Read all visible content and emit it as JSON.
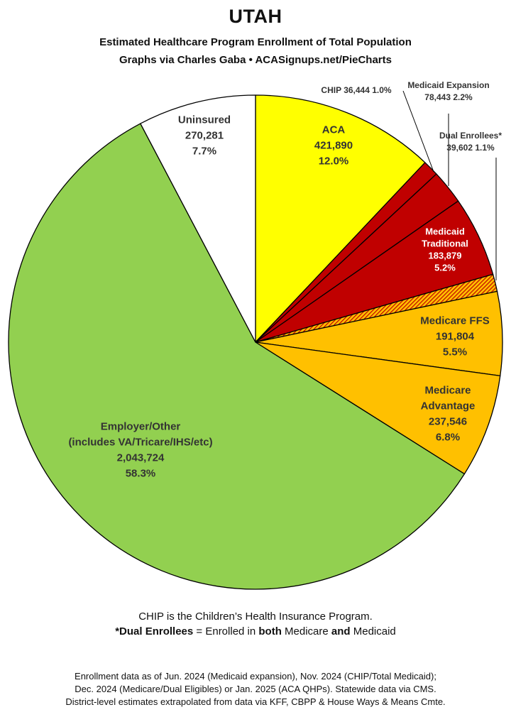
{
  "header": {
    "title": "UTAH",
    "subtitle_line1": "Estimated Healthcare Program Enrollment of Total Population",
    "subtitle_line2": "Graphs via Charles Gaba  •  ACASignups.net/PieCharts"
  },
  "chart_data": {
    "type": "pie",
    "title": "UTAH",
    "slices": [
      {
        "key": "aca",
        "label": [
          "ACA"
        ],
        "value": 421890,
        "value_text": "421,890",
        "percent": "12.0%",
        "color": "#ffff00",
        "label_color": "#333333"
      },
      {
        "key": "chip",
        "label": [
          "CHIP"
        ],
        "value": 36444,
        "value_text": "36,444",
        "percent": "1.0%",
        "color": "#c00000",
        "label_color": "#333333"
      },
      {
        "key": "medicaid-expansion",
        "label": [
          "Medicaid Expansion"
        ],
        "value": 78443,
        "value_text": "78,443",
        "percent": "2.2%",
        "color": "#c00000",
        "label_color": "#333333"
      },
      {
        "key": "medicaid-traditional",
        "label": [
          "Medicaid",
          "Traditional"
        ],
        "value": 183879,
        "value_text": "183,879",
        "percent": "5.2%",
        "color": "#c00000",
        "label_color": "#ffffff"
      },
      {
        "key": "dual-enrollees",
        "label": [
          "Dual Enrollees*"
        ],
        "value": 39602,
        "value_text": "39,602",
        "percent": "1.1%",
        "color": "hatch",
        "label_color": "#333333"
      },
      {
        "key": "medicare-ffs",
        "label": [
          "Medicare FFS"
        ],
        "value": 191804,
        "value_text": "191,804",
        "percent": "5.5%",
        "color": "#ffc000",
        "label_color": "#333333"
      },
      {
        "key": "medicare-advantage",
        "label": [
          "Medicare",
          "Advantage"
        ],
        "value": 237546,
        "value_text": "237,546",
        "percent": "6.8%",
        "color": "#ffc000",
        "label_color": "#333333"
      },
      {
        "key": "employer-other",
        "label": [
          "Employer/Other",
          "(includes VA/Tricare/IHS/etc)"
        ],
        "value": 2043724,
        "value_text": "2,043,724",
        "percent": "58.3%",
        "color": "#92d050",
        "label_color": "#333333"
      },
      {
        "key": "uninsured",
        "label": [
          "Uninsured"
        ],
        "value": 270281,
        "value_text": "270,281",
        "percent": "7.7%",
        "color": "#ffffff",
        "label_color": "#333333"
      }
    ]
  },
  "footnotes": {
    "line1": "CHIP is the Children’s Health Insurance Program.",
    "line2_term": "*Dual Enrollees",
    "line2_a": " = Enrolled in ",
    "line2_both": "both",
    "line2_b": " Medicare ",
    "line2_and": "and",
    "line2_c": " Medicaid"
  },
  "source": {
    "line1": "Enrollment data as of Jun. 2024 (Medicaid expansion), Nov. 2024 (CHIP/Total Medicaid);",
    "line2": "Dec. 2024 (Medicare/Dual Eligibles) or Jan. 2025 (ACA QHPs). Statewide data via CMS.",
    "line3": "District-level estimates extrapolated from data via KFF, CBPP & House Ways & Means Cmte."
  }
}
